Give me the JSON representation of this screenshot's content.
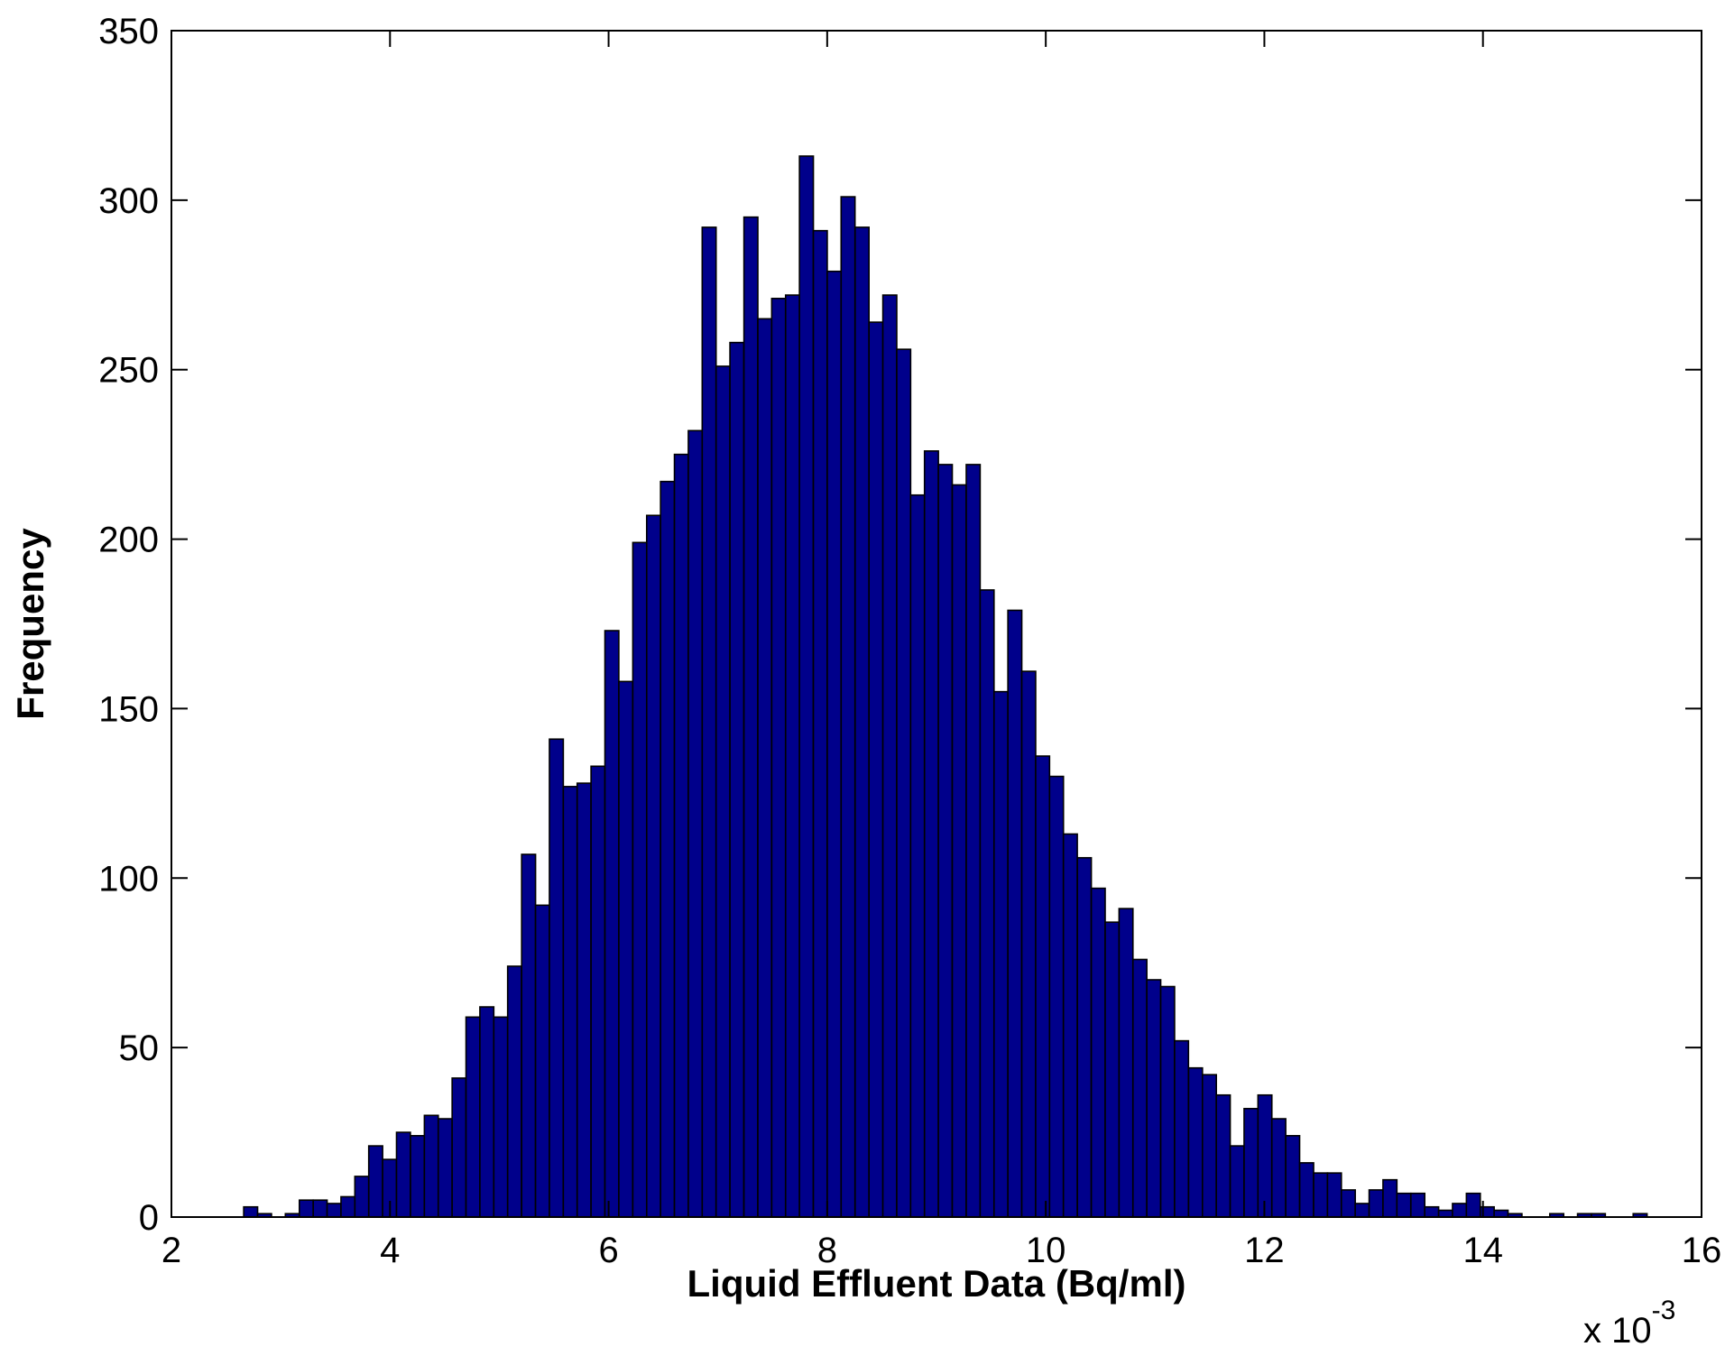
{
  "chart_data": {
    "type": "bar",
    "title": "",
    "xlabel": "Liquid Effluent Data (Bq/ml)",
    "ylabel": "Frequency",
    "x_multiplier": {
      "base": "x 10",
      "exponent": "-3"
    },
    "xlim": [
      2,
      16
    ],
    "ylim": [
      0,
      350
    ],
    "xticks": [
      2,
      4,
      6,
      8,
      10,
      12,
      14,
      16
    ],
    "yticks": [
      0,
      50,
      100,
      150,
      200,
      250,
      300,
      350
    ],
    "grid": false,
    "legend": "none",
    "bar_color": "#00008B",
    "edge_color": "#000000",
    "bin_width": 0.1271,
    "bin_centers": [
      2.725,
      2.852,
      2.979,
      3.106,
      3.234,
      3.361,
      3.488,
      3.615,
      3.742,
      3.869,
      3.996,
      4.123,
      4.251,
      4.378,
      4.505,
      4.632,
      4.759,
      4.886,
      5.013,
      5.14,
      5.268,
      5.395,
      5.522,
      5.649,
      5.776,
      5.903,
      6.03,
      6.157,
      6.285,
      6.412,
      6.539,
      6.666,
      6.793,
      6.92,
      7.047,
      7.174,
      7.302,
      7.429,
      7.556,
      7.683,
      7.81,
      7.937,
      8.064,
      8.191,
      8.319,
      8.446,
      8.573,
      8.7,
      8.827,
      8.954,
      9.081,
      9.208,
      9.336,
      9.463,
      9.59,
      9.717,
      9.844,
      9.971,
      10.098,
      10.225,
      10.353,
      10.48,
      10.607,
      10.734,
      10.861,
      10.988,
      11.115,
      11.242,
      11.37,
      11.497,
      11.624,
      11.751,
      11.878,
      12.005,
      12.132,
      12.259,
      12.387,
      12.514,
      12.641,
      12.768,
      12.895,
      13.022,
      13.149,
      13.276,
      13.404,
      13.531,
      13.658,
      13.785,
      13.912,
      14.039,
      14.166,
      14.293,
      14.421,
      14.548,
      14.675,
      14.802,
      14.929,
      15.056,
      15.183,
      15.31,
      15.438
    ],
    "values": [
      3,
      1,
      0,
      1,
      5,
      5,
      4,
      6,
      12,
      21,
      17,
      25,
      24,
      30,
      29,
      41,
      59,
      62,
      59,
      74,
      107,
      92,
      141,
      127,
      128,
      133,
      173,
      158,
      199,
      207,
      217,
      225,
      232,
      292,
      251,
      258,
      295,
      265,
      271,
      272,
      313,
      291,
      279,
      301,
      292,
      264,
      272,
      256,
      213,
      226,
      222,
      216,
      222,
      185,
      155,
      179,
      161,
      136,
      130,
      113,
      106,
      97,
      87,
      91,
      76,
      70,
      68,
      52,
      44,
      42,
      36,
      21,
      32,
      36,
      29,
      24,
      16,
      13,
      13,
      8,
      4,
      8,
      11,
      7,
      7,
      3,
      2,
      4,
      7,
      3,
      2,
      1,
      0,
      0,
      1,
      0,
      1,
      1,
      0,
      0,
      1
    ]
  }
}
